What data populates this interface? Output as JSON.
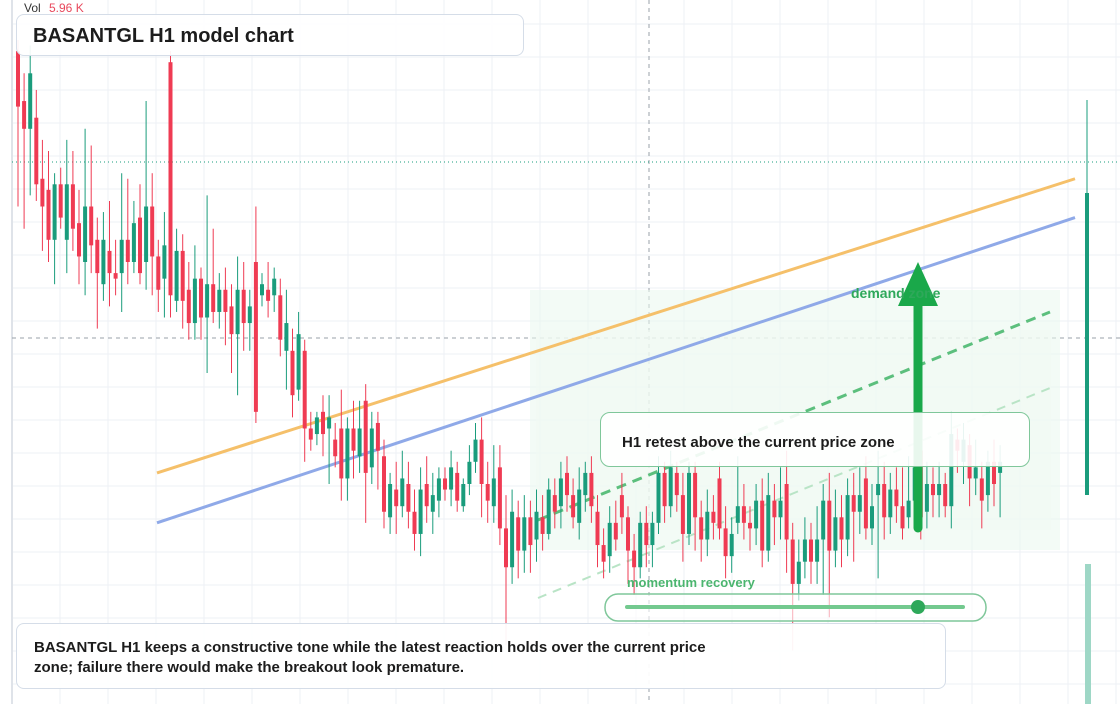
{
  "volume": {
    "label": "Vol",
    "value": "5.96 K"
  },
  "header": {
    "title": "BASANTGL H1 model chart"
  },
  "callout": {
    "text": "H1 retest above the current price zone"
  },
  "annotations": {
    "demand": "demand zone",
    "momentum": "momentum recovery"
  },
  "note": {
    "text": "BASANTGL H1 keeps a constructive tone while the latest reaction holds over the current price zone; failure there would make the breakout look premature."
  },
  "colors": {
    "up": "#1a9c7c",
    "down": "#ef3b53",
    "trend_orange": "#f5c06a",
    "trend_blue": "#8fa9e8",
    "accent_green": "#1aa84a"
  },
  "chart_data": {
    "type": "candlestick",
    "title": "BASANTGL H1 model chart",
    "xlabel": "",
    "ylabel": "",
    "ylim": [
      0,
      100
    ],
    "grid": true,
    "candles": [
      {
        "o": 98,
        "c": 88,
        "h": 100,
        "l": 70
      },
      {
        "o": 89,
        "c": 84,
        "h": 94,
        "l": 66
      },
      {
        "o": 84,
        "c": 94,
        "h": 99,
        "l": 72
      },
      {
        "o": 86,
        "c": 74,
        "h": 91,
        "l": 71
      },
      {
        "o": 75,
        "c": 70,
        "h": 82,
        "l": 62
      },
      {
        "o": 73,
        "c": 64,
        "h": 80,
        "l": 60
      },
      {
        "o": 64,
        "c": 74,
        "h": 76,
        "l": 56
      },
      {
        "o": 74,
        "c": 68,
        "h": 77,
        "l": 66
      },
      {
        "o": 64,
        "c": 74,
        "h": 82,
        "l": 58
      },
      {
        "o": 74,
        "c": 66,
        "h": 80,
        "l": 62
      },
      {
        "o": 67,
        "c": 61,
        "h": 73,
        "l": 56
      },
      {
        "o": 60,
        "c": 70,
        "h": 84,
        "l": 54
      },
      {
        "o": 70,
        "c": 63,
        "h": 81,
        "l": 58
      },
      {
        "o": 64,
        "c": 58,
        "h": 68,
        "l": 48
      },
      {
        "o": 56,
        "c": 64,
        "h": 69,
        "l": 53
      },
      {
        "o": 62,
        "c": 58,
        "h": 71,
        "l": 52
      },
      {
        "o": 58,
        "c": 57,
        "h": 64,
        "l": 54
      },
      {
        "o": 58,
        "c": 64,
        "h": 76,
        "l": 51
      },
      {
        "o": 64,
        "c": 60,
        "h": 75,
        "l": 56
      },
      {
        "o": 60,
        "c": 67,
        "h": 71,
        "l": 58
      },
      {
        "o": 68,
        "c": 58,
        "h": 74,
        "l": 56
      },
      {
        "o": 60,
        "c": 70,
        "h": 89,
        "l": 55
      },
      {
        "o": 70,
        "c": 61,
        "h": 76,
        "l": 54
      },
      {
        "o": 61,
        "c": 55,
        "h": 64,
        "l": 51
      },
      {
        "o": 57,
        "c": 63,
        "h": 69,
        "l": 50
      },
      {
        "o": 96,
        "c": 54,
        "h": 98,
        "l": 50
      },
      {
        "o": 53,
        "c": 62,
        "h": 66,
        "l": 51
      },
      {
        "o": 62,
        "c": 53,
        "h": 65,
        "l": 48
      },
      {
        "o": 55,
        "c": 49,
        "h": 60,
        "l": 46
      },
      {
        "o": 49,
        "c": 57,
        "h": 63,
        "l": 46
      },
      {
        "o": 57,
        "c": 50,
        "h": 59,
        "l": 46
      },
      {
        "o": 50,
        "c": 56,
        "h": 72,
        "l": 40
      },
      {
        "o": 56,
        "c": 51,
        "h": 66,
        "l": 49
      },
      {
        "o": 51,
        "c": 55,
        "h": 58,
        "l": 48
      },
      {
        "o": 55,
        "c": 51,
        "h": 59,
        "l": 45
      },
      {
        "o": 52,
        "c": 47,
        "h": 56,
        "l": 40
      },
      {
        "o": 47,
        "c": 55,
        "h": 61,
        "l": 36
      },
      {
        "o": 55,
        "c": 49,
        "h": 60,
        "l": 44
      },
      {
        "o": 49,
        "c": 52,
        "h": 55,
        "l": 44
      },
      {
        "o": 60,
        "c": 33,
        "h": 70,
        "l": 31
      },
      {
        "o": 54,
        "c": 56,
        "h": 58,
        "l": 52
      },
      {
        "o": 55,
        "c": 53,
        "h": 60,
        "l": 50
      },
      {
        "o": 54,
        "c": 57,
        "h": 59,
        "l": 51
      },
      {
        "o": 54,
        "c": 46,
        "h": 57,
        "l": 43
      },
      {
        "o": 44,
        "c": 49,
        "h": 55,
        "l": 37
      },
      {
        "o": 44,
        "c": 36,
        "h": 48,
        "l": 32
      },
      {
        "o": 37,
        "c": 47,
        "h": 51,
        "l": 35
      },
      {
        "o": 44,
        "c": 30,
        "h": 46,
        "l": 24
      },
      {
        "o": 30,
        "c": 28,
        "h": 33,
        "l": 26
      },
      {
        "o": 29,
        "c": 32,
        "h": 33,
        "l": 27
      },
      {
        "o": 33,
        "c": 29,
        "h": 36,
        "l": 25
      },
      {
        "o": 30,
        "c": 32,
        "h": 36,
        "l": 20
      },
      {
        "o": 28,
        "c": 25,
        "h": 31,
        "l": 23
      },
      {
        "o": 30,
        "c": 21,
        "h": 37,
        "l": 17
      },
      {
        "o": 21,
        "c": 30,
        "h": 32,
        "l": 17
      },
      {
        "o": 30,
        "c": 26,
        "h": 35,
        "l": 21
      },
      {
        "o": 25,
        "c": 30,
        "h": 35,
        "l": 22
      },
      {
        "o": 35,
        "c": 22,
        "h": 38,
        "l": 13
      },
      {
        "o": 23,
        "c": 30,
        "h": 33,
        "l": 20
      },
      {
        "o": 31,
        "c": 26,
        "h": 33,
        "l": 19
      },
      {
        "o": 25,
        "c": 15,
        "h": 28,
        "l": 12
      },
      {
        "o": 14,
        "c": 20,
        "h": 22,
        "l": 11
      },
      {
        "o": 19,
        "c": 16,
        "h": 24,
        "l": 11
      },
      {
        "o": 16,
        "c": 21,
        "h": 26,
        "l": 14
      },
      {
        "o": 20,
        "c": 15,
        "h": 24,
        "l": 12
      },
      {
        "o": 15,
        "c": 11,
        "h": 19,
        "l": 8
      },
      {
        "o": 11,
        "c": 19,
        "h": 23,
        "l": 7
      },
      {
        "o": 20,
        "c": 16,
        "h": 25,
        "l": 13
      },
      {
        "o": 15,
        "c": 18,
        "h": 22,
        "l": 11
      },
      {
        "o": 17,
        "c": 21,
        "h": 23,
        "l": 14
      },
      {
        "o": 21,
        "c": 19,
        "h": 23,
        "l": 17
      },
      {
        "o": 19,
        "c": 23,
        "h": 26,
        "l": 16
      },
      {
        "o": 22,
        "c": 17,
        "h": 24,
        "l": 15
      },
      {
        "o": 16,
        "c": 20,
        "h": 21,
        "l": 15
      },
      {
        "o": 20,
        "c": 24,
        "h": 27,
        "l": 18
      },
      {
        "o": 24,
        "c": 28,
        "h": 31,
        "l": 22
      },
      {
        "o": 28,
        "c": 20,
        "h": 32,
        "l": 14
      },
      {
        "o": 20,
        "c": 17,
        "h": 24,
        "l": 13
      },
      {
        "o": 16,
        "c": 21,
        "h": 27,
        "l": 13
      },
      {
        "o": 23,
        "c": 12,
        "h": 27,
        "l": 9
      },
      {
        "o": 12,
        "c": 5,
        "h": 18,
        "l": -9
      },
      {
        "o": 5,
        "c": 15,
        "h": 19,
        "l": 2
      },
      {
        "o": 14,
        "c": 8,
        "h": 17,
        "l": 3
      },
      {
        "o": 8,
        "c": 14,
        "h": 18,
        "l": 4
      },
      {
        "o": 14,
        "c": 9,
        "h": 17,
        "l": 4
      },
      {
        "o": 10,
        "c": 15,
        "h": 19,
        "l": 6
      },
      {
        "o": 14,
        "c": 11,
        "h": 18,
        "l": 8
      },
      {
        "o": 11,
        "c": 19,
        "h": 21,
        "l": 10
      },
      {
        "o": 18,
        "c": 15,
        "h": 21,
        "l": 12
      },
      {
        "o": 16,
        "c": 21,
        "h": 24,
        "l": 12
      },
      {
        "o": 22,
        "c": 18,
        "h": 25,
        "l": 15
      },
      {
        "o": 18,
        "c": 14,
        "h": 21,
        "l": 12
      },
      {
        "o": 13,
        "c": 19,
        "h": 23,
        "l": 10
      },
      {
        "o": 18,
        "c": 22,
        "h": 24,
        "l": 15
      },
      {
        "o": 22,
        "c": 16,
        "h": 25,
        "l": 13
      },
      {
        "o": 15,
        "c": 9,
        "h": 18,
        "l": 5
      },
      {
        "o": 9,
        "c": 6,
        "h": 12,
        "l": 3
      },
      {
        "o": 7,
        "c": 13,
        "h": 16,
        "l": 4
      },
      {
        "o": 13,
        "c": 10,
        "h": 17,
        "l": 8
      },
      {
        "o": 18,
        "c": 14,
        "h": 22,
        "l": 11
      },
      {
        "o": 14,
        "c": 8,
        "h": 16,
        "l": 2
      },
      {
        "o": 8,
        "c": 5,
        "h": 11,
        "l": 0
      },
      {
        "o": 5,
        "c": 13,
        "h": 15,
        "l": 3
      },
      {
        "o": 13,
        "c": 9,
        "h": 16,
        "l": 5
      },
      {
        "o": 9,
        "c": 13,
        "h": 15,
        "l": 5
      },
      {
        "o": 13,
        "c": 22,
        "h": 25,
        "l": 11
      },
      {
        "o": 22,
        "c": 16,
        "h": 24,
        "l": 13
      },
      {
        "o": 16,
        "c": 23,
        "h": 26,
        "l": 14
      },
      {
        "o": 22,
        "c": 18,
        "h": 24,
        "l": 15
      },
      {
        "o": 18,
        "c": 11,
        "h": 22,
        "l": 6
      },
      {
        "o": 11,
        "c": 22,
        "h": 24,
        "l": 9
      },
      {
        "o": 22,
        "c": 14,
        "h": 24,
        "l": 8
      },
      {
        "o": 14,
        "c": 10,
        "h": 17,
        "l": 6
      },
      {
        "o": 10,
        "c": 15,
        "h": 19,
        "l": 7
      },
      {
        "o": 15,
        "c": 13,
        "h": 18,
        "l": 10
      },
      {
        "o": 21,
        "c": 12,
        "h": 24,
        "l": 10
      },
      {
        "o": 12,
        "c": 7,
        "h": 16,
        "l": 3
      },
      {
        "o": 7,
        "c": 11,
        "h": 14,
        "l": 4
      },
      {
        "o": 13,
        "c": 16,
        "h": 25,
        "l": 11
      },
      {
        "o": 16,
        "c": 13,
        "h": 20,
        "l": 10
      },
      {
        "o": 13,
        "c": 12,
        "h": 16,
        "l": 8
      },
      {
        "o": 12,
        "c": 17,
        "h": 20,
        "l": 9
      },
      {
        "o": 17,
        "c": 8,
        "h": 21,
        "l": 5
      },
      {
        "o": 8,
        "c": 18,
        "h": 22,
        "l": 6
      },
      {
        "o": 17,
        "c": 14,
        "h": 20,
        "l": 9
      },
      {
        "o": 14,
        "c": 17,
        "h": 23,
        "l": 10
      },
      {
        "o": 20,
        "c": 10,
        "h": 26,
        "l": 4
      },
      {
        "o": 10,
        "c": 2,
        "h": 13,
        "l": -10
      },
      {
        "o": 2,
        "c": 6,
        "h": 10,
        "l": -1
      },
      {
        "o": 6,
        "c": 10,
        "h": 14,
        "l": 3
      },
      {
        "o": 10,
        "c": 6,
        "h": 13,
        "l": 2
      },
      {
        "o": 6,
        "c": 10,
        "h": 16,
        "l": 2
      },
      {
        "o": 10,
        "c": 17,
        "h": 20,
        "l": 0
      },
      {
        "o": 17,
        "c": 8,
        "h": 22,
        "l": -4
      },
      {
        "o": 8,
        "c": 14,
        "h": 19,
        "l": 5
      },
      {
        "o": 14,
        "c": 10,
        "h": 18,
        "l": 5
      },
      {
        "o": 10,
        "c": 18,
        "h": 21,
        "l": 7
      },
      {
        "o": 18,
        "c": 15,
        "h": 22,
        "l": 6
      },
      {
        "o": 15,
        "c": 18,
        "h": 23,
        "l": 11
      },
      {
        "o": 21,
        "c": 12,
        "h": 25,
        "l": 10
      },
      {
        "o": 12,
        "c": 16,
        "h": 20,
        "l": 9
      },
      {
        "o": 18,
        "c": 20,
        "h": 26,
        "l": 3
      },
      {
        "o": 20,
        "c": 14,
        "h": 24,
        "l": 10
      },
      {
        "o": 14,
        "c": 19,
        "h": 22,
        "l": 11
      },
      {
        "o": 19,
        "c": 16,
        "h": 23,
        "l": 13
      },
      {
        "o": 16,
        "c": 12,
        "h": 23,
        "l": 10
      },
      {
        "o": 14,
        "c": 17,
        "h": 25,
        "l": 12
      },
      {
        "o": 17,
        "c": 23,
        "h": 30,
        "l": 14
      },
      {
        "o": 26,
        "c": 14,
        "h": 29,
        "l": 10
      },
      {
        "o": 15,
        "c": 20,
        "h": 24,
        "l": 12
      },
      {
        "o": 20,
        "c": 18,
        "h": 23,
        "l": 14
      },
      {
        "o": 18,
        "c": 20,
        "h": 24,
        "l": 14
      },
      {
        "o": 20,
        "c": 16,
        "h": 22,
        "l": 14
      },
      {
        "o": 16,
        "c": 29,
        "h": 33,
        "l": 12
      },
      {
        "o": 28,
        "c": 26,
        "h": 30,
        "l": 22
      },
      {
        "o": 24,
        "c": 28,
        "h": 31,
        "l": 20
      },
      {
        "o": 27,
        "c": 21,
        "h": 29,
        "l": 16
      },
      {
        "o": 21,
        "c": 23,
        "h": 28,
        "l": 18
      },
      {
        "o": 21,
        "c": 17,
        "h": 24,
        "l": 12
      },
      {
        "o": 18,
        "c": 24,
        "h": 26,
        "l": 15
      },
      {
        "o": 24,
        "c": 20,
        "h": 28,
        "l": 16
      },
      {
        "o": 22,
        "c": 24,
        "h": 27,
        "l": 14
      }
    ],
    "last_price_spike": {
      "o": 52,
      "c": 60,
      "h": 100,
      "l": 50
    },
    "trendlines": [
      {
        "name": "",
        "color": "#f5c06a",
        "from": [
          0,
          22
        ],
        "to": [
          1,
          75
        ]
      },
      {
        "name": "",
        "color": "#8fa9e8",
        "from": [
          0,
          13
        ],
        "to": [
          1,
          68
        ]
      }
    ],
    "reference_levels": [
      85,
      65
    ]
  }
}
